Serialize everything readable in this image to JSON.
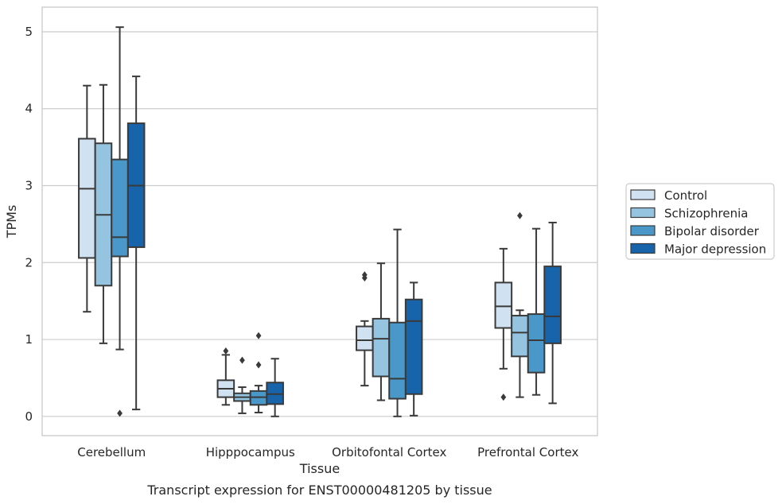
{
  "chart_data": {
    "type": "box",
    "title": "",
    "caption": "Transcript expression for ENST00000481205 by tissue",
    "xlabel": "Tissue",
    "ylabel": "TPMs",
    "ylim": [
      -0.25,
      5.32
    ],
    "yticks": [
      0,
      1,
      2,
      3,
      4,
      5
    ],
    "grid": "horizontal",
    "legend_position": "right",
    "categories": [
      "Cerebellum",
      "Hipppocampus",
      "Orbitofontal Cortex",
      "Prefrontal Cortex"
    ],
    "series": [
      {
        "name": "Control",
        "color": "#d0e1f2",
        "boxes": [
          {
            "whisker_low": 1.36,
            "q1": 2.06,
            "median": 2.96,
            "q3": 3.61,
            "whisker_high": 4.3,
            "outliers": []
          },
          {
            "whisker_low": 0.15,
            "q1": 0.25,
            "median": 0.36,
            "q3": 0.47,
            "whisker_high": 0.8,
            "outliers": [
              0.85
            ]
          },
          {
            "whisker_low": 0.4,
            "q1": 0.86,
            "median": 0.99,
            "q3": 1.17,
            "whisker_high": 1.24,
            "outliers": [
              1.8,
              1.84
            ]
          },
          {
            "whisker_low": 0.62,
            "q1": 1.15,
            "median": 1.43,
            "q3": 1.74,
            "whisker_high": 2.18,
            "outliers": [
              0.25
            ]
          }
        ]
      },
      {
        "name": "Schizophrenia",
        "color": "#94c4df",
        "boxes": [
          {
            "whisker_low": 0.95,
            "q1": 1.7,
            "median": 2.62,
            "q3": 3.55,
            "whisker_high": 4.31,
            "outliers": []
          },
          {
            "whisker_low": 0.04,
            "q1": 0.2,
            "median": 0.25,
            "q3": 0.3,
            "whisker_high": 0.38,
            "outliers": [
              0.73
            ]
          },
          {
            "whisker_low": 0.21,
            "q1": 0.52,
            "median": 1.01,
            "q3": 1.27,
            "whisker_high": 1.99,
            "outliers": []
          },
          {
            "whisker_low": 0.25,
            "q1": 0.78,
            "median": 1.09,
            "q3": 1.31,
            "whisker_high": 1.38,
            "outliers": [
              2.61
            ]
          }
        ]
      },
      {
        "name": "Bipolar disorder",
        "color": "#4a98c9",
        "boxes": [
          {
            "whisker_low": 0.87,
            "q1": 2.08,
            "median": 2.33,
            "q3": 3.34,
            "whisker_high": 5.06,
            "outliers": [
              0.04
            ]
          },
          {
            "whisker_low": 0.05,
            "q1": 0.15,
            "median": 0.25,
            "q3": 0.33,
            "whisker_high": 0.4,
            "outliers": [
              1.05,
              0.67
            ]
          },
          {
            "whisker_low": 0.0,
            "q1": 0.23,
            "median": 0.49,
            "q3": 1.22,
            "whisker_high": 2.43,
            "outliers": []
          },
          {
            "whisker_low": 0.28,
            "q1": 0.57,
            "median": 0.99,
            "q3": 1.33,
            "whisker_high": 2.44,
            "outliers": []
          }
        ]
      },
      {
        "name": "Major depression",
        "color": "#1764ab",
        "boxes": [
          {
            "whisker_low": 0.09,
            "q1": 2.2,
            "median": 3.0,
            "q3": 3.81,
            "whisker_high": 4.42,
            "outliers": []
          },
          {
            "whisker_low": 0.0,
            "q1": 0.16,
            "median": 0.29,
            "q3": 0.44,
            "whisker_high": 0.75,
            "outliers": []
          },
          {
            "whisker_low": 0.01,
            "q1": 0.29,
            "median": 1.24,
            "q3": 1.52,
            "whisker_high": 1.74,
            "outliers": []
          },
          {
            "whisker_low": 0.17,
            "q1": 0.95,
            "median": 1.3,
            "q3": 1.95,
            "whisker_high": 2.52,
            "outliers": []
          }
        ]
      }
    ]
  }
}
